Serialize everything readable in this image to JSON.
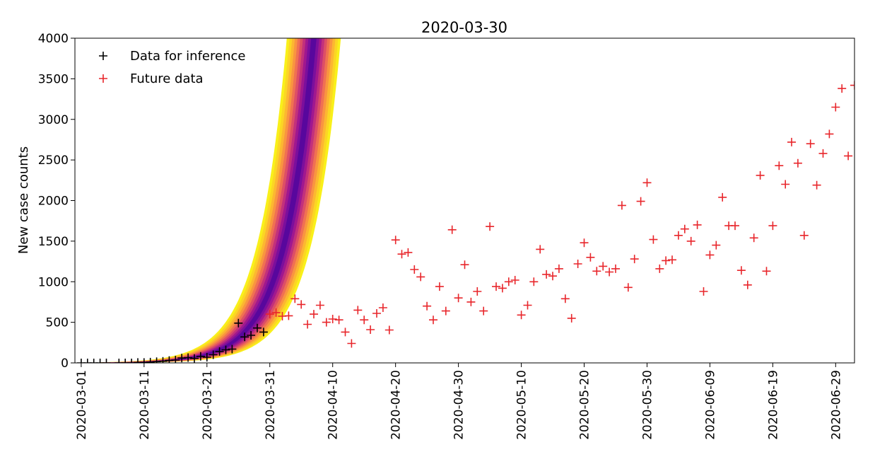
{
  "chart_data": {
    "type": "scatter",
    "title": "2020-03-30",
    "xlabel": "",
    "ylabel": "New case counts",
    "xlim": [
      "2020-02-29",
      "2020-07-02"
    ],
    "ylim": [
      0,
      4000
    ],
    "yticks": [
      0,
      500,
      1000,
      1500,
      2000,
      2500,
      3000,
      3500,
      4000
    ],
    "xticks": [
      "2020-03-01",
      "2020-03-11",
      "2020-03-21",
      "2020-03-31",
      "2020-04-10",
      "2020-04-20",
      "2020-04-30",
      "2020-05-10",
      "2020-05-20",
      "2020-05-30",
      "2020-06-09",
      "2020-06-19",
      "2020-06-29"
    ],
    "grid": false,
    "legend_position": "top-left",
    "series": [
      {
        "name": "Data for inference",
        "color": "#000000",
        "marker": "plus",
        "points": [
          [
            "2020-03-01",
            0
          ],
          [
            "2020-03-02",
            0
          ],
          [
            "2020-03-03",
            0
          ],
          [
            "2020-03-04",
            0
          ],
          [
            "2020-03-05",
            0
          ],
          [
            "2020-03-07",
            0
          ],
          [
            "2020-03-08",
            0
          ],
          [
            "2020-03-09",
            0
          ],
          [
            "2020-03-10",
            5
          ],
          [
            "2020-03-11",
            5
          ],
          [
            "2020-03-12",
            10
          ],
          [
            "2020-03-13",
            15
          ],
          [
            "2020-03-14",
            20
          ],
          [
            "2020-03-15",
            30
          ],
          [
            "2020-03-16",
            35
          ],
          [
            "2020-03-17",
            60
          ],
          [
            "2020-03-18",
            65
          ],
          [
            "2020-03-19",
            55
          ],
          [
            "2020-03-20",
            80
          ],
          [
            "2020-03-21",
            70
          ],
          [
            "2020-03-22",
            100
          ],
          [
            "2020-03-23",
            140
          ],
          [
            "2020-03-24",
            160
          ],
          [
            "2020-03-25",
            170
          ],
          [
            "2020-03-26",
            490
          ],
          [
            "2020-03-27",
            320
          ],
          [
            "2020-03-28",
            340
          ],
          [
            "2020-03-29",
            430
          ],
          [
            "2020-03-30",
            380
          ]
        ]
      },
      {
        "name": "Future data",
        "color": "#e8262b",
        "marker": "plus",
        "points": [
          [
            "2020-03-31",
            600
          ],
          [
            "2020-04-01",
            620
          ],
          [
            "2020-04-02",
            575
          ],
          [
            "2020-04-03",
            580
          ],
          [
            "2020-04-04",
            790
          ],
          [
            "2020-04-05",
            720
          ],
          [
            "2020-04-06",
            475
          ],
          [
            "2020-04-07",
            600
          ],
          [
            "2020-04-08",
            710
          ],
          [
            "2020-04-09",
            500
          ],
          [
            "2020-04-10",
            540
          ],
          [
            "2020-04-11",
            530
          ],
          [
            "2020-04-12",
            380
          ],
          [
            "2020-04-13",
            240
          ],
          [
            "2020-04-14",
            650
          ],
          [
            "2020-04-15",
            530
          ],
          [
            "2020-04-16",
            410
          ],
          [
            "2020-04-17",
            610
          ],
          [
            "2020-04-18",
            680
          ],
          [
            "2020-04-19",
            405
          ],
          [
            "2020-04-20",
            1515
          ],
          [
            "2020-04-21",
            1340
          ],
          [
            "2020-04-22",
            1360
          ],
          [
            "2020-04-23",
            1150
          ],
          [
            "2020-04-24",
            1060
          ],
          [
            "2020-04-25",
            700
          ],
          [
            "2020-04-26",
            530
          ],
          [
            "2020-04-27",
            940
          ],
          [
            "2020-04-28",
            640
          ],
          [
            "2020-04-29",
            1640
          ],
          [
            "2020-04-30",
            800
          ],
          [
            "2020-05-01",
            1210
          ],
          [
            "2020-05-02",
            750
          ],
          [
            "2020-05-03",
            880
          ],
          [
            "2020-05-04",
            640
          ],
          [
            "2020-05-05",
            1680
          ],
          [
            "2020-05-06",
            940
          ],
          [
            "2020-05-07",
            920
          ],
          [
            "2020-05-08",
            1000
          ],
          [
            "2020-05-09",
            1020
          ],
          [
            "2020-05-10",
            590
          ],
          [
            "2020-05-11",
            710
          ],
          [
            "2020-05-12",
            1000
          ],
          [
            "2020-05-13",
            1400
          ],
          [
            "2020-05-14",
            1090
          ],
          [
            "2020-05-15",
            1070
          ],
          [
            "2020-05-16",
            1160
          ],
          [
            "2020-05-17",
            790
          ],
          [
            "2020-05-18",
            550
          ],
          [
            "2020-05-19",
            1220
          ],
          [
            "2020-05-20",
            1480
          ],
          [
            "2020-05-21",
            1300
          ],
          [
            "2020-05-22",
            1130
          ],
          [
            "2020-05-23",
            1190
          ],
          [
            "2020-05-24",
            1120
          ],
          [
            "2020-05-25",
            1160
          ],
          [
            "2020-05-26",
            1940
          ],
          [
            "2020-05-27",
            930
          ],
          [
            "2020-05-28",
            1280
          ],
          [
            "2020-05-29",
            1990
          ],
          [
            "2020-05-30",
            2220
          ],
          [
            "2020-05-31",
            1520
          ],
          [
            "2020-06-01",
            1160
          ],
          [
            "2020-06-02",
            1260
          ],
          [
            "2020-06-03",
            1270
          ],
          [
            "2020-06-04",
            1570
          ],
          [
            "2020-06-05",
            1650
          ],
          [
            "2020-06-06",
            1500
          ],
          [
            "2020-06-07",
            1700
          ],
          [
            "2020-06-08",
            880
          ],
          [
            "2020-06-09",
            1330
          ],
          [
            "2020-06-10",
            1450
          ],
          [
            "2020-06-11",
            2040
          ],
          [
            "2020-06-12",
            1690
          ],
          [
            "2020-06-13",
            1690
          ],
          [
            "2020-06-14",
            1140
          ],
          [
            "2020-06-15",
            960
          ],
          [
            "2020-06-16",
            1540
          ],
          [
            "2020-06-17",
            2310
          ],
          [
            "2020-06-18",
            1130
          ],
          [
            "2020-06-19",
            1690
          ],
          [
            "2020-06-20",
            2430
          ],
          [
            "2020-06-21",
            2200
          ],
          [
            "2020-06-22",
            2720
          ],
          [
            "2020-06-23",
            2460
          ],
          [
            "2020-06-24",
            1570
          ],
          [
            "2020-06-25",
            2700
          ],
          [
            "2020-06-26",
            2190
          ],
          [
            "2020-06-27",
            2580
          ],
          [
            "2020-06-28",
            2820
          ],
          [
            "2020-06-29",
            3150
          ],
          [
            "2020-06-30",
            3380
          ],
          [
            "2020-07-01",
            2550
          ],
          [
            "2020-07-02",
            3420
          ]
        ]
      }
    ],
    "fan": {
      "description": "posterior predictive band",
      "center_start": "2020-03-12",
      "doubling_days": 3.25,
      "center_at_4000": "2020-04-07",
      "colors_outer_to_inner": [
        "#f9f01a",
        "#fbd624",
        "#fcb731",
        "#f99540",
        "#f07152",
        "#dd4f66",
        "#c2317c",
        "#a0188f",
        "#7c0f9c",
        "#58079d"
      ]
    }
  }
}
